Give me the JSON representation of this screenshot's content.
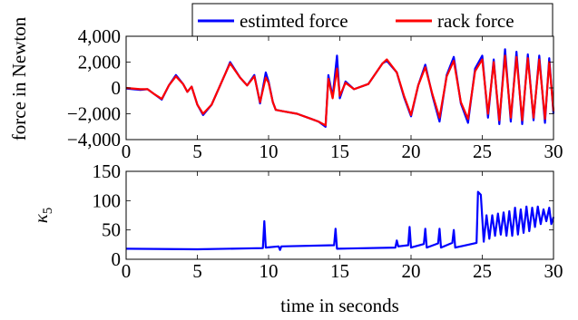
{
  "chart_data": [
    {
      "type": "line",
      "ylabel": "force in Newton",
      "xlim": [
        0,
        30
      ],
      "ylim": [
        -4000,
        4000
      ],
      "xticks": [
        "0",
        "5",
        "10",
        "15",
        "20",
        "25",
        "30"
      ],
      "yticks": [
        "−4,000",
        "−2,000",
        "0",
        "2,000",
        "4,000"
      ],
      "legend": "top-right",
      "series": [
        {
          "name": "estimted force",
          "color": "#0000ff",
          "points": [
            [
              0,
              -50
            ],
            [
              1,
              -150
            ],
            [
              1.5,
              -100
            ],
            [
              2,
              -500
            ],
            [
              2.5,
              -900
            ],
            [
              3,
              200
            ],
            [
              3.5,
              1000
            ],
            [
              4,
              300
            ],
            [
              4.3,
              -300
            ],
            [
              4.6,
              100
            ],
            [
              5,
              -1300
            ],
            [
              5.4,
              -2100
            ],
            [
              6,
              -1300
            ],
            [
              7,
              1200
            ],
            [
              7.3,
              2000
            ],
            [
              8,
              800
            ],
            [
              8.5,
              200
            ],
            [
              9,
              1000
            ],
            [
              9.4,
              -1200
            ],
            [
              9.8,
              1200
            ],
            [
              10,
              500
            ],
            [
              10.3,
              -1100
            ],
            [
              10.5,
              -1700
            ],
            [
              11,
              -1800
            ],
            [
              12,
              -2000
            ],
            [
              13,
              -2400
            ],
            [
              13.5,
              -2600
            ],
            [
              14,
              -3000
            ],
            [
              14.2,
              1000
            ],
            [
              14.5,
              -700
            ],
            [
              14.8,
              2500
            ],
            [
              15,
              -800
            ],
            [
              15.4,
              500
            ],
            [
              16,
              -100
            ],
            [
              17,
              300
            ],
            [
              18,
              1900
            ],
            [
              18.3,
              2100
            ],
            [
              19,
              1200
            ],
            [
              19.5,
              -700
            ],
            [
              20,
              -2200
            ],
            [
              20.5,
              200
            ],
            [
              21,
              1800
            ],
            [
              21.5,
              -600
            ],
            [
              22,
              -2600
            ],
            [
              22.5,
              1000
            ],
            [
              23,
              2400
            ],
            [
              23.5,
              -1200
            ],
            [
              24,
              -2700
            ],
            [
              24.5,
              1500
            ],
            [
              25,
              2500
            ],
            [
              25.4,
              -2300
            ],
            [
              25.8,
              2200
            ],
            [
              26.2,
              -2800
            ],
            [
              26.6,
              3000
            ],
            [
              27,
              -2600
            ],
            [
              27.4,
              2800
            ],
            [
              27.8,
              -2800
            ],
            [
              28.2,
              2600
            ],
            [
              28.6,
              -2500
            ],
            [
              29,
              2500
            ],
            [
              29.4,
              -2700
            ],
            [
              29.7,
              2300
            ],
            [
              30,
              -2000
            ]
          ]
        },
        {
          "name": "rack force",
          "color": "#ff0000",
          "points": [
            [
              0,
              0
            ],
            [
              1,
              -100
            ],
            [
              1.5,
              -100
            ],
            [
              2,
              -500
            ],
            [
              2.5,
              -850
            ],
            [
              3,
              200
            ],
            [
              3.5,
              900
            ],
            [
              4,
              300
            ],
            [
              4.3,
              -300
            ],
            [
              4.6,
              100
            ],
            [
              5,
              -1300
            ],
            [
              5.4,
              -2000
            ],
            [
              6,
              -1300
            ],
            [
              7,
              1200
            ],
            [
              7.3,
              1900
            ],
            [
              8,
              800
            ],
            [
              8.5,
              200
            ],
            [
              9,
              900
            ],
            [
              9.4,
              -1100
            ],
            [
              9.8,
              800
            ],
            [
              10,
              400
            ],
            [
              10.3,
              -1100
            ],
            [
              10.5,
              -1700
            ],
            [
              11,
              -1800
            ],
            [
              12,
              -2000
            ],
            [
              13,
              -2400
            ],
            [
              13.5,
              -2600
            ],
            [
              14,
              -2900
            ],
            [
              14.2,
              700
            ],
            [
              14.5,
              -800
            ],
            [
              14.8,
              1500
            ],
            [
              15,
              -600
            ],
            [
              15.4,
              400
            ],
            [
              16,
              -100
            ],
            [
              17,
              300
            ],
            [
              18,
              1900
            ],
            [
              18.3,
              2200
            ],
            [
              19,
              1200
            ],
            [
              19.5,
              -600
            ],
            [
              20,
              -2100
            ],
            [
              20.5,
              200
            ],
            [
              21,
              1600
            ],
            [
              21.5,
              -500
            ],
            [
              22,
              -2300
            ],
            [
              22.5,
              900
            ],
            [
              23,
              2100
            ],
            [
              23.5,
              -1100
            ],
            [
              24,
              -2400
            ],
            [
              24.5,
              1300
            ],
            [
              25,
              2200
            ],
            [
              25.4,
              -2000
            ],
            [
              25.8,
              2000
            ],
            [
              26.2,
              -2500
            ],
            [
              26.6,
              2500
            ],
            [
              27,
              -2300
            ],
            [
              27.4,
              2400
            ],
            [
              27.8,
              -2500
            ],
            [
              28.2,
              2300
            ],
            [
              28.6,
              -2300
            ],
            [
              29,
              2200
            ],
            [
              29.4,
              -2400
            ],
            [
              29.7,
              2000
            ],
            [
              30,
              -1800
            ]
          ]
        }
      ]
    },
    {
      "type": "line",
      "xlabel": "time in seconds",
      "ylabel": "κ5",
      "xlim": [
        0,
        30
      ],
      "ylim": [
        0,
        150
      ],
      "xticks": [
        "0",
        "5",
        "10",
        "15",
        "20",
        "25",
        "30"
      ],
      "yticks": [
        "0",
        "50",
        "100",
        "150"
      ],
      "series": [
        {
          "color": "#0000ff",
          "points": [
            [
              0,
              18
            ],
            [
              5,
              17
            ],
            [
              9.6,
              19
            ],
            [
              9.7,
              65
            ],
            [
              9.8,
              20
            ],
            [
              10.7,
              22
            ],
            [
              10.8,
              16
            ],
            [
              10.9,
              22
            ],
            [
              14.6,
              24
            ],
            [
              14.7,
              52
            ],
            [
              14.8,
              18
            ],
            [
              18.9,
              20
            ],
            [
              19.0,
              32
            ],
            [
              19.1,
              22
            ],
            [
              19.8,
              24
            ],
            [
              19.9,
              55
            ],
            [
              20.0,
              20
            ],
            [
              20.9,
              26
            ],
            [
              21.0,
              52
            ],
            [
              21.1,
              20
            ],
            [
              21.9,
              27
            ],
            [
              22.0,
              52
            ],
            [
              22.1,
              20
            ],
            [
              22.9,
              28
            ],
            [
              23.0,
              50
            ],
            [
              23.1,
              20
            ],
            [
              24.6,
              28
            ],
            [
              24.7,
              115
            ],
            [
              24.9,
              110
            ],
            [
              25.1,
              30
            ],
            [
              25.3,
              75
            ],
            [
              25.5,
              35
            ],
            [
              25.7,
              75
            ],
            [
              25.9,
              40
            ],
            [
              26.1,
              78
            ],
            [
              26.3,
              42
            ],
            [
              26.5,
              80
            ],
            [
              26.7,
              40
            ],
            [
              26.9,
              82
            ],
            [
              27.1,
              40
            ],
            [
              27.3,
              88
            ],
            [
              27.5,
              42
            ],
            [
              27.7,
              85
            ],
            [
              27.9,
              45
            ],
            [
              28.1,
              90
            ],
            [
              28.3,
              48
            ],
            [
              28.5,
              88
            ],
            [
              28.7,
              55
            ],
            [
              28.9,
              90
            ],
            [
              29.1,
              60
            ],
            [
              29.3,
              85
            ],
            [
              29.5,
              65
            ],
            [
              29.7,
              88
            ],
            [
              29.85,
              60
            ],
            [
              30,
              72
            ]
          ]
        }
      ]
    }
  ]
}
